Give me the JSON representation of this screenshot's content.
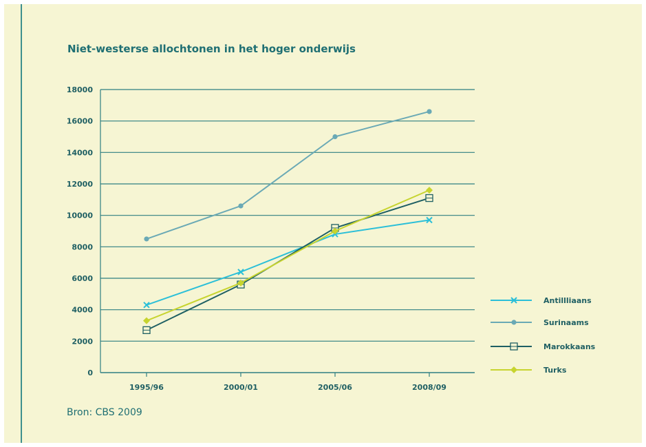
{
  "chart_data": {
    "type": "line",
    "title": "Niet-westerse allochtonen in het hoger onderwijs",
    "source": "Bron: CBS 2009",
    "categories": [
      "1995/96",
      "2000/01",
      "2005/06",
      "2008/09"
    ],
    "ylim": [
      0,
      18000
    ],
    "yticks": [
      0,
      2000,
      4000,
      6000,
      8000,
      10000,
      12000,
      14000,
      16000,
      18000
    ],
    "grid": true,
    "legend_position": "right",
    "series": [
      {
        "name": "Antillliaans",
        "color": "#2bbfd8",
        "marker": "x",
        "values": [
          4300,
          6400,
          8800,
          9700
        ]
      },
      {
        "name": "Surinaams",
        "color": "#6aa9b5",
        "marker": "circle",
        "values": [
          8500,
          10600,
          15000,
          16600
        ]
      },
      {
        "name": "Marokkaans",
        "color": "#1e5f63",
        "marker": "square",
        "values": [
          2700,
          5600,
          9200,
          11100
        ]
      },
      {
        "name": "Turks",
        "color": "#c7d42f",
        "marker": "diamond",
        "values": [
          3300,
          5700,
          9000,
          11600
        ]
      }
    ]
  },
  "colors": {
    "background": "#f6f5d3",
    "text": "#1f6f73",
    "gridline": "#2e7f82"
  }
}
